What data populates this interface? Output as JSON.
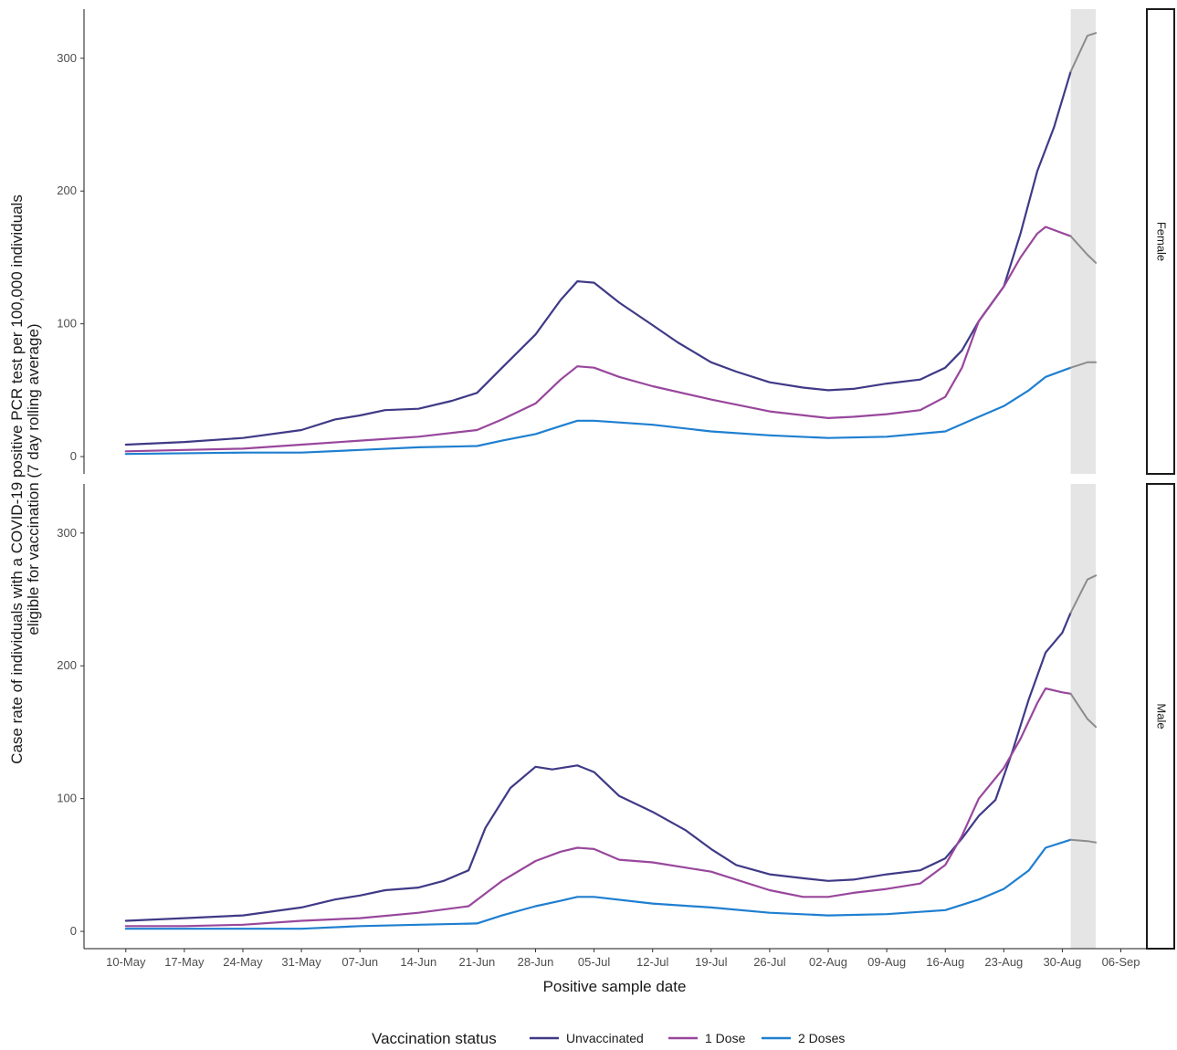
{
  "chart_data": {
    "type": "line",
    "xlabel": "Positive sample date",
    "ylabel_line1": "Case rate of individuals with a COVID-19 positive PCR test per 100,000 individuals",
    "ylabel_line2": "eligible for vaccination (7 day rolling average)",
    "ylim": [
      -13,
      337
    ],
    "y_ticks": [
      "0",
      "100",
      "200",
      "300"
    ],
    "x_range": [
      "2021-05-05",
      "2021-09-09"
    ],
    "x_ticks": [
      {
        "date": "2021-05-10",
        "label": "10-May"
      },
      {
        "date": "2021-05-17",
        "label": "17-May"
      },
      {
        "date": "2021-05-24",
        "label": "24-May"
      },
      {
        "date": "2021-05-31",
        "label": "31-May"
      },
      {
        "date": "2021-06-07",
        "label": "07-Jun"
      },
      {
        "date": "2021-06-14",
        "label": "14-Jun"
      },
      {
        "date": "2021-06-21",
        "label": "21-Jun"
      },
      {
        "date": "2021-06-28",
        "label": "28-Jun"
      },
      {
        "date": "2021-07-05",
        "label": "05-Jul"
      },
      {
        "date": "2021-07-12",
        "label": "12-Jul"
      },
      {
        "date": "2021-07-19",
        "label": "19-Jul"
      },
      {
        "date": "2021-07-26",
        "label": "26-Jul"
      },
      {
        "date": "2021-08-02",
        "label": "02-Aug"
      },
      {
        "date": "2021-08-09",
        "label": "09-Aug"
      },
      {
        "date": "2021-08-16",
        "label": "16-Aug"
      },
      {
        "date": "2021-08-23",
        "label": "23-Aug"
      },
      {
        "date": "2021-08-30",
        "label": "30-Aug"
      },
      {
        "date": "2021-09-06",
        "label": "06-Sep"
      }
    ],
    "shaded_period": [
      "2021-08-31",
      "2021-09-03"
    ],
    "incomplete_color": "#8c8c8c",
    "grid": false,
    "legend": {
      "title": "Vaccination status",
      "position": "bottom",
      "items": [
        {
          "label": "Unvaccinated",
          "color": "#3f3a86"
        },
        {
          "label": "1 Dose",
          "color": "#98479c"
        },
        {
          "label": "2 Doses",
          "color": "#1f7fd0"
        }
      ]
    },
    "panels": [
      {
        "label": "Female",
        "series": [
          {
            "name": "Unvaccinated",
            "color": "#3f3a86",
            "points": [
              [
                "2021-05-10",
                9
              ],
              [
                "2021-05-17",
                11
              ],
              [
                "2021-05-24",
                14
              ],
              [
                "2021-05-31",
                20
              ],
              [
                "2021-06-04",
                28
              ],
              [
                "2021-06-07",
                31
              ],
              [
                "2021-06-10",
                35
              ],
              [
                "2021-06-14",
                36
              ],
              [
                "2021-06-18",
                42
              ],
              [
                "2021-06-21",
                48
              ],
              [
                "2021-06-24",
                67
              ],
              [
                "2021-06-28",
                92
              ],
              [
                "2021-07-01",
                118
              ],
              [
                "2021-07-03",
                132
              ],
              [
                "2021-07-05",
                131
              ],
              [
                "2021-07-08",
                116
              ],
              [
                "2021-07-12",
                99
              ],
              [
                "2021-07-15",
                86
              ],
              [
                "2021-07-19",
                71
              ],
              [
                "2021-07-22",
                64
              ],
              [
                "2021-07-26",
                56
              ],
              [
                "2021-07-30",
                52
              ],
              [
                "2021-08-02",
                50
              ],
              [
                "2021-08-05",
                51
              ],
              [
                "2021-08-09",
                55
              ],
              [
                "2021-08-13",
                58
              ],
              [
                "2021-08-16",
                67
              ],
              [
                "2021-08-18",
                80
              ],
              [
                "2021-08-20",
                102
              ],
              [
                "2021-08-23",
                128
              ],
              [
                "2021-08-25",
                168
              ],
              [
                "2021-08-27",
                215
              ],
              [
                "2021-08-29",
                248
              ],
              [
                "2021-08-31",
                290
              ],
              [
                "2021-09-02",
                317
              ],
              [
                "2021-09-03",
                319
              ]
            ]
          },
          {
            "name": "1 Dose",
            "color": "#98479c",
            "points": [
              [
                "2021-05-10",
                4
              ],
              [
                "2021-05-17",
                5
              ],
              [
                "2021-05-24",
                6
              ],
              [
                "2021-05-31",
                9
              ],
              [
                "2021-06-07",
                12
              ],
              [
                "2021-06-14",
                15
              ],
              [
                "2021-06-21",
                20
              ],
              [
                "2021-06-24",
                28
              ],
              [
                "2021-06-28",
                40
              ],
              [
                "2021-07-01",
                58
              ],
              [
                "2021-07-03",
                68
              ],
              [
                "2021-07-05",
                67
              ],
              [
                "2021-07-08",
                60
              ],
              [
                "2021-07-12",
                53
              ],
              [
                "2021-07-19",
                43
              ],
              [
                "2021-07-26",
                34
              ],
              [
                "2021-08-02",
                29
              ],
              [
                "2021-08-05",
                30
              ],
              [
                "2021-08-09",
                32
              ],
              [
                "2021-08-13",
                35
              ],
              [
                "2021-08-16",
                45
              ],
              [
                "2021-08-18",
                67
              ],
              [
                "2021-08-20",
                102
              ],
              [
                "2021-08-23",
                128
              ],
              [
                "2021-08-25",
                150
              ],
              [
                "2021-08-27",
                168
              ],
              [
                "2021-08-28",
                173
              ],
              [
                "2021-08-31",
                166
              ],
              [
                "2021-09-02",
                152
              ],
              [
                "2021-09-03",
                146
              ]
            ]
          },
          {
            "name": "2 Doses",
            "color": "#1f7fd0",
            "points": [
              [
                "2021-05-10",
                2
              ],
              [
                "2021-05-24",
                3
              ],
              [
                "2021-05-31",
                3
              ],
              [
                "2021-06-07",
                5
              ],
              [
                "2021-06-14",
                7
              ],
              [
                "2021-06-21",
                8
              ],
              [
                "2021-06-24",
                12
              ],
              [
                "2021-06-28",
                17
              ],
              [
                "2021-07-01",
                23
              ],
              [
                "2021-07-03",
                27
              ],
              [
                "2021-07-05",
                27
              ],
              [
                "2021-07-12",
                24
              ],
              [
                "2021-07-19",
                19
              ],
              [
                "2021-07-26",
                16
              ],
              [
                "2021-08-02",
                14
              ],
              [
                "2021-08-09",
                15
              ],
              [
                "2021-08-16",
                19
              ],
              [
                "2021-08-20",
                30
              ],
              [
                "2021-08-23",
                38
              ],
              [
                "2021-08-26",
                50
              ],
              [
                "2021-08-28",
                60
              ],
              [
                "2021-08-31",
                67
              ],
              [
                "2021-09-02",
                71
              ],
              [
                "2021-09-03",
                71
              ]
            ]
          }
        ]
      },
      {
        "label": "Male",
        "series": [
          {
            "name": "Unvaccinated",
            "color": "#3f3a86",
            "points": [
              [
                "2021-05-10",
                8
              ],
              [
                "2021-05-17",
                10
              ],
              [
                "2021-05-24",
                12
              ],
              [
                "2021-05-31",
                18
              ],
              [
                "2021-06-04",
                24
              ],
              [
                "2021-06-07",
                27
              ],
              [
                "2021-06-10",
                31
              ],
              [
                "2021-06-14",
                33
              ],
              [
                "2021-06-17",
                38
              ],
              [
                "2021-06-20",
                46
              ],
              [
                "2021-06-22",
                78
              ],
              [
                "2021-06-25",
                108
              ],
              [
                "2021-06-28",
                124
              ],
              [
                "2021-06-30",
                122
              ],
              [
                "2021-07-03",
                125
              ],
              [
                "2021-07-05",
                120
              ],
              [
                "2021-07-08",
                102
              ],
              [
                "2021-07-12",
                90
              ],
              [
                "2021-07-16",
                76
              ],
              [
                "2021-07-19",
                62
              ],
              [
                "2021-07-22",
                50
              ],
              [
                "2021-07-26",
                43
              ],
              [
                "2021-07-30",
                40
              ],
              [
                "2021-08-02",
                38
              ],
              [
                "2021-08-05",
                39
              ],
              [
                "2021-08-09",
                43
              ],
              [
                "2021-08-13",
                46
              ],
              [
                "2021-08-16",
                55
              ],
              [
                "2021-08-18",
                70
              ],
              [
                "2021-08-20",
                87
              ],
              [
                "2021-08-22",
                99
              ],
              [
                "2021-08-24",
                135
              ],
              [
                "2021-08-26",
                175
              ],
              [
                "2021-08-28",
                210
              ],
              [
                "2021-08-30",
                225
              ],
              [
                "2021-08-31",
                240
              ],
              [
                "2021-09-02",
                265
              ],
              [
                "2021-09-03",
                268
              ]
            ]
          },
          {
            "name": "1 Dose",
            "color": "#98479c",
            "points": [
              [
                "2021-05-10",
                4
              ],
              [
                "2021-05-17",
                4
              ],
              [
                "2021-05-24",
                5
              ],
              [
                "2021-05-31",
                8
              ],
              [
                "2021-06-07",
                10
              ],
              [
                "2021-06-14",
                14
              ],
              [
                "2021-06-20",
                19
              ],
              [
                "2021-06-24",
                38
              ],
              [
                "2021-06-28",
                53
              ],
              [
                "2021-07-01",
                60
              ],
              [
                "2021-07-03",
                63
              ],
              [
                "2021-07-05",
                62
              ],
              [
                "2021-07-08",
                54
              ],
              [
                "2021-07-12",
                52
              ],
              [
                "2021-07-19",
                45
              ],
              [
                "2021-07-26",
                31
              ],
              [
                "2021-07-30",
                26
              ],
              [
                "2021-08-02",
                26
              ],
              [
                "2021-08-05",
                29
              ],
              [
                "2021-08-09",
                32
              ],
              [
                "2021-08-13",
                36
              ],
              [
                "2021-08-16",
                50
              ],
              [
                "2021-08-18",
                72
              ],
              [
                "2021-08-20",
                100
              ],
              [
                "2021-08-23",
                123
              ],
              [
                "2021-08-25",
                145
              ],
              [
                "2021-08-27",
                172
              ],
              [
                "2021-08-28",
                183
              ],
              [
                "2021-08-30",
                180
              ],
              [
                "2021-08-31",
                179
              ],
              [
                "2021-09-02",
                160
              ],
              [
                "2021-09-03",
                154
              ]
            ]
          },
          {
            "name": "2 Doses",
            "color": "#1f7fd0",
            "points": [
              [
                "2021-05-10",
                2
              ],
              [
                "2021-05-31",
                2
              ],
              [
                "2021-06-07",
                4
              ],
              [
                "2021-06-14",
                5
              ],
              [
                "2021-06-21",
                6
              ],
              [
                "2021-06-24",
                12
              ],
              [
                "2021-06-28",
                19
              ],
              [
                "2021-07-01",
                23
              ],
              [
                "2021-07-03",
                26
              ],
              [
                "2021-07-05",
                26
              ],
              [
                "2021-07-12",
                21
              ],
              [
                "2021-07-19",
                18
              ],
              [
                "2021-07-26",
                14
              ],
              [
                "2021-08-02",
                12
              ],
              [
                "2021-08-09",
                13
              ],
              [
                "2021-08-16",
                16
              ],
              [
                "2021-08-20",
                24
              ],
              [
                "2021-08-23",
                32
              ],
              [
                "2021-08-26",
                46
              ],
              [
                "2021-08-28",
                63
              ],
              [
                "2021-08-31",
                69
              ],
              [
                "2021-09-02",
                68
              ],
              [
                "2021-09-03",
                67
              ]
            ]
          }
        ]
      }
    ]
  }
}
